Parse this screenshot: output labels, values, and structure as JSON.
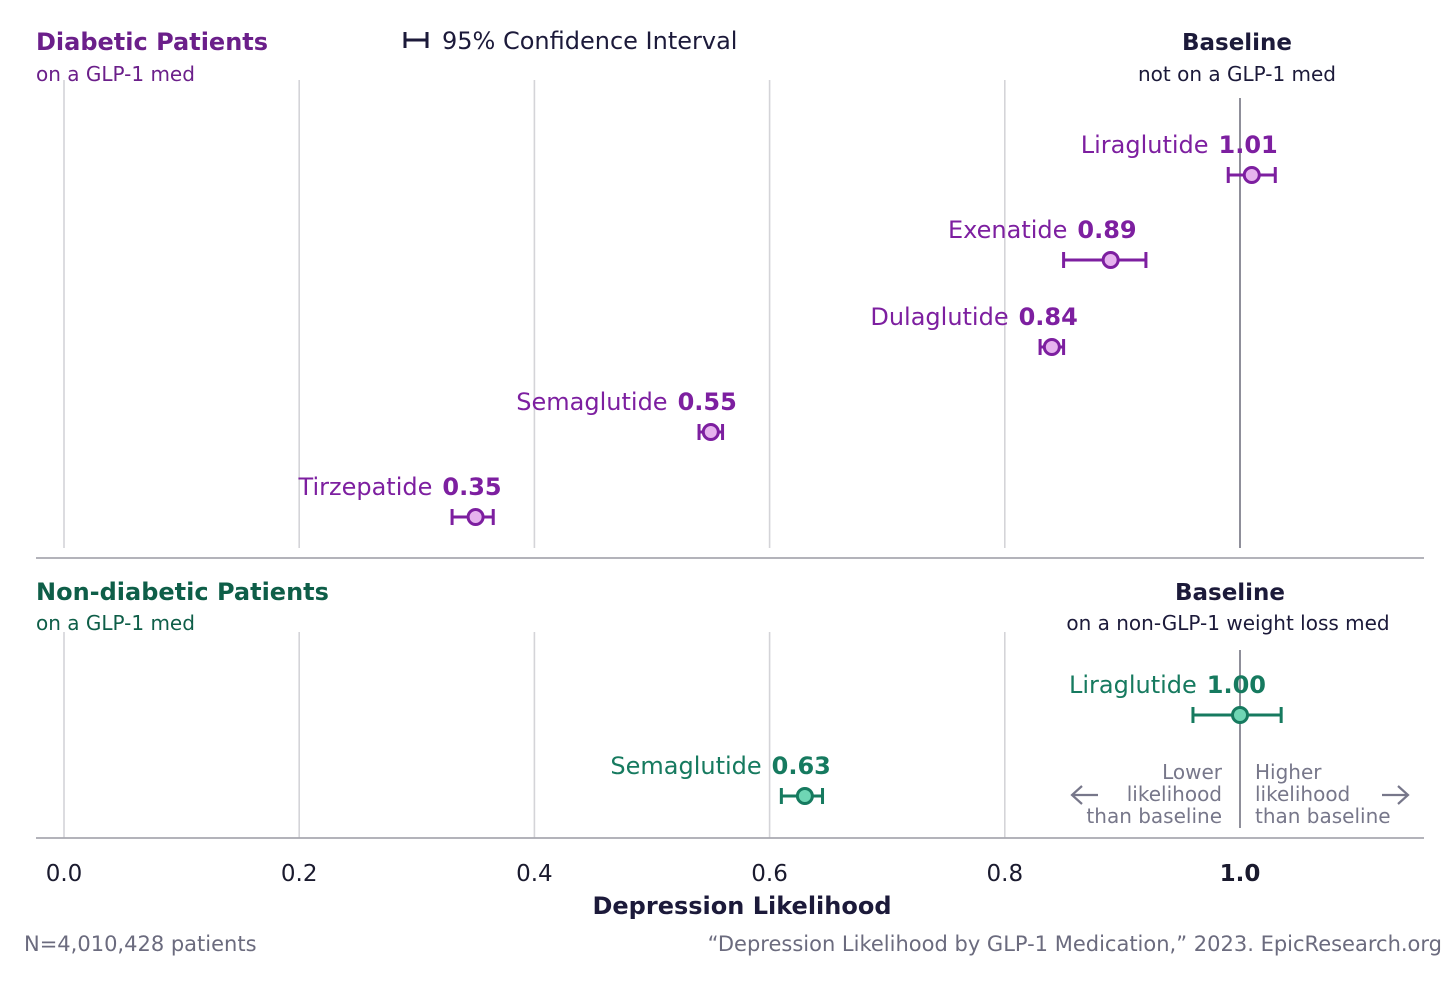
{
  "chart_data": {
    "type": "scatter",
    "xlabel": "Depression Likelihood",
    "xlim": [
      0.0,
      1.15
    ],
    "x_ticks": [
      {
        "value": 0.0,
        "label": "0.0"
      },
      {
        "value": 0.2,
        "label": "0.2"
      },
      {
        "value": 0.4,
        "label": "0.4"
      },
      {
        "value": 0.6,
        "label": "0.6"
      },
      {
        "value": 0.8,
        "label": "0.8"
      },
      {
        "value": 1.0,
        "label": "1.0"
      }
    ],
    "grid": true,
    "legend": {
      "label": "95% Confidence Interval",
      "placement": "top-center"
    },
    "panels": [
      {
        "title": "Diabetic Patients",
        "subtitle": "on a GLP-1 med",
        "color": "#6b1f8a",
        "point_color": "#7d1fa0",
        "fill_color": "#e6b3ee",
        "baseline_title": "Baseline",
        "baseline_subtitle": "not on a GLP-1 med",
        "points": [
          {
            "name": "Liraglutide",
            "label": "1.01",
            "value": 1.01,
            "ci_low": 0.99,
            "ci_high": 1.03
          },
          {
            "name": "Exenatide",
            "label": "0.89",
            "value": 0.89,
            "ci_low": 0.85,
            "ci_high": 0.92
          },
          {
            "name": "Dulaglutide",
            "label": "0.84",
            "value": 0.84,
            "ci_low": 0.83,
            "ci_high": 0.85
          },
          {
            "name": "Semaglutide",
            "label": "0.55",
            "value": 0.55,
            "ci_low": 0.54,
            "ci_high": 0.56
          },
          {
            "name": "Tirzepatide",
            "label": "0.35",
            "value": 0.35,
            "ci_low": 0.33,
            "ci_high": 0.365
          }
        ]
      },
      {
        "title": "Non-diabetic Patients",
        "subtitle": "on a GLP-1 med",
        "color": "#0e5e48",
        "point_color": "#167a5f",
        "fill_color": "#6fd6b4",
        "baseline_title": "Baseline",
        "baseline_subtitle": "on a non-GLP-1 weight loss med",
        "points": [
          {
            "name": "Liraglutide",
            "label": "1.00",
            "value": 1.0,
            "ci_low": 0.96,
            "ci_high": 1.035
          },
          {
            "name": "Semaglutide",
            "label": "0.63",
            "value": 0.63,
            "ci_low": 0.61,
            "ci_high": 0.645
          }
        ]
      }
    ],
    "annotations": {
      "lower": [
        "Lower",
        "likelihood",
        "than baseline"
      ],
      "higher": [
        "Higher",
        "likelihood",
        "than baseline"
      ]
    }
  },
  "footer": {
    "left": "N=4,010,428 patients",
    "right": "“Depression Likelihood by GLP-1 Medication,” 2023. EpicResearch.org"
  },
  "colors": {
    "text_dark": "#1c1a3a",
    "grid": "#d4d4d8",
    "note": "#77778a"
  }
}
